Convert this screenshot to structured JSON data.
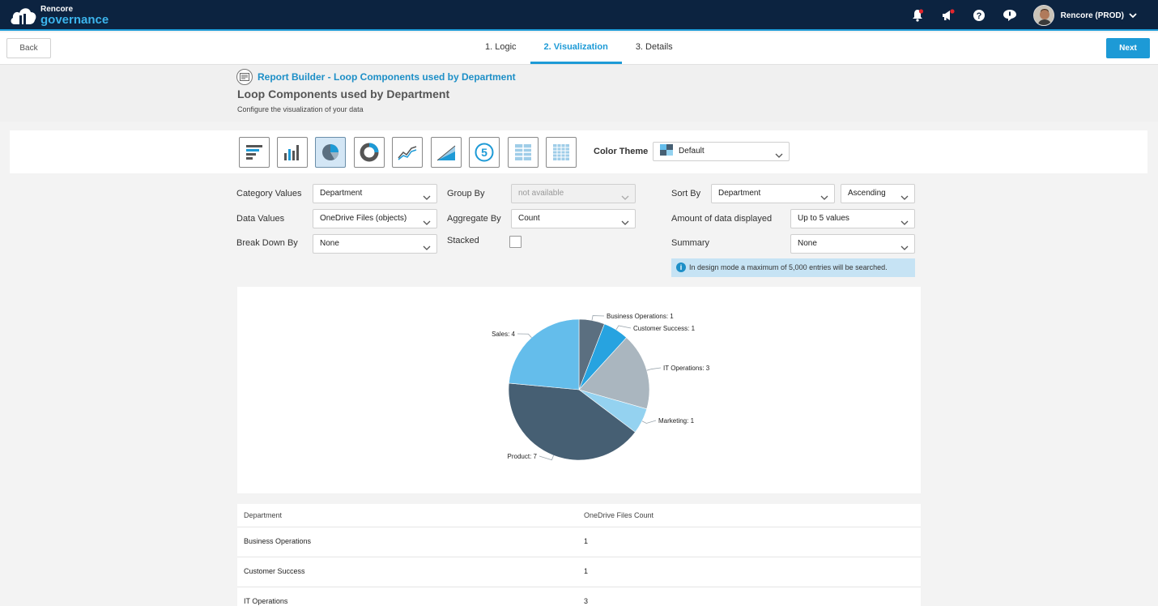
{
  "app": {
    "logo_line1": "Rencore",
    "logo_line2": "governance",
    "user_label": "Rencore (PROD)"
  },
  "wizard": {
    "back_label": "Back",
    "next_label": "Next",
    "steps": [
      {
        "label": "1. Logic",
        "active": false
      },
      {
        "label": "2. Visualization",
        "active": true
      },
      {
        "label": "3. Details",
        "active": false
      }
    ]
  },
  "header": {
    "breadcrumb": "Report Builder - Loop Components used by Department",
    "title": "Loop Components used by Department",
    "subtitle": "Configure the visualization of your data"
  },
  "toolbar": {
    "chart_types": [
      "horizontal-bar",
      "vertical-bar",
      "pie",
      "donut",
      "line",
      "area",
      "number",
      "table",
      "grid"
    ],
    "active_type": "pie",
    "color_theme_label": "Color Theme",
    "color_theme_value": "Default"
  },
  "form": {
    "category_values_label": "Category Values",
    "category_values": "Department",
    "data_values_label": "Data Values",
    "data_values": "OneDrive Files (objects)",
    "break_down_label": "Break Down By",
    "break_down": "None",
    "group_by_label": "Group By",
    "group_by": "not available",
    "aggregate_label": "Aggregate By",
    "aggregate": "Count",
    "stacked_label": "Stacked",
    "sort_by_label": "Sort By",
    "sort_by": "Department",
    "sort_order": "Ascending",
    "amount_label": "Amount of data displayed",
    "amount": "Up to 5 values",
    "summary_label": "Summary",
    "summary": "None",
    "info": "In design mode a maximum of 5,000 entries will be searched."
  },
  "chart_data": {
    "type": "pie",
    "categories": [
      "Business Operations",
      "Customer Success",
      "IT Operations",
      "Marketing",
      "Product",
      "Sales"
    ],
    "values": [
      1,
      1,
      3,
      1,
      7,
      4
    ],
    "labels": [
      "Business Operations: 1",
      "Customer Success: 1",
      "IT Operations: 3",
      "Marketing: 1",
      "Product: 7",
      "Sales: 4"
    ],
    "colors": [
      "#5b6f80",
      "#27a3e0",
      "#aab6bf",
      "#94d2f0",
      "#465f73",
      "#64bdeb"
    ]
  },
  "table": {
    "headers": [
      "Department",
      "OneDrive Files Count"
    ],
    "rows": [
      [
        "Business Operations",
        "1"
      ],
      [
        "Customer Success",
        "1"
      ],
      [
        "IT Operations",
        "3"
      ]
    ]
  }
}
